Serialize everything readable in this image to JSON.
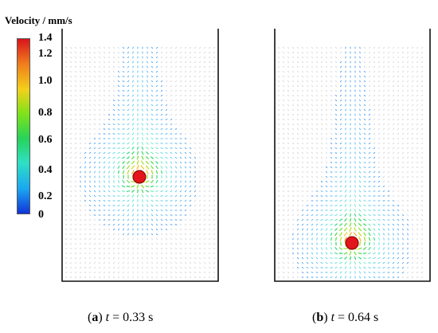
{
  "legend": {
    "title": "Velocity / mm/s",
    "ticks": [
      "1.4",
      "1.2",
      "1.0",
      "0.8",
      "0.6",
      "0.4",
      "0.2",
      "0"
    ],
    "tick_values": [
      1.4,
      1.2,
      1.0,
      0.8,
      0.6,
      0.4,
      0.2,
      0.0
    ],
    "colors": [
      "#d8141c",
      "#f07b1c",
      "#f2d11a",
      "#7ee21a",
      "#27d35a",
      "#2fe0c4",
      "#1aa6f2",
      "#1233d8"
    ]
  },
  "panels": [
    {
      "caption_label": "a",
      "caption_var": "t",
      "caption_value": "= 0.33 s",
      "sphere_color": "#e3141b",
      "sphere_position_fraction": 0.5
    },
    {
      "caption_label": "b",
      "caption_var": "t",
      "caption_value": "= 0.64 s",
      "sphere_color": "#e3141b",
      "sphere_position_fraction": 0.86
    }
  ]
}
